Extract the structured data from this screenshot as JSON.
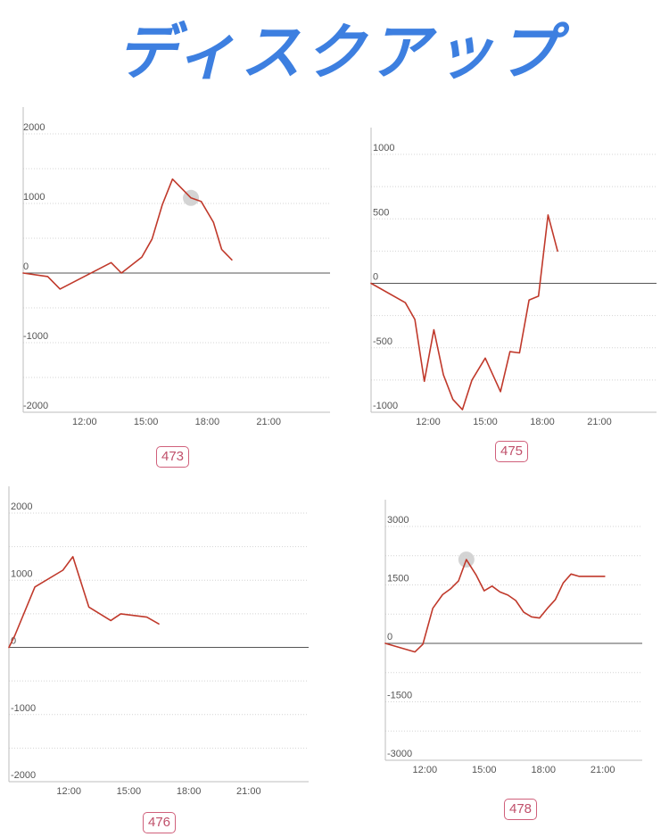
{
  "header": {
    "title": "ディスクアップ",
    "color": "#3d7fe0"
  },
  "theme": {
    "line": "#c0392b",
    "badge": "#d0607b"
  },
  "chart_data": [
    {
      "type": "line",
      "label": "473",
      "xticks": [
        "12:00",
        "15:00",
        "18:00",
        "21:00"
      ],
      "xlim": [
        9.0,
        24.0
      ],
      "yticks": [
        2000,
        1000,
        0,
        -1000,
        -2000
      ],
      "ylim": [
        -2000,
        2000
      ],
      "grid": true,
      "highlight_index": 9,
      "x": [
        9.0,
        10.2,
        10.8,
        13.3,
        13.8,
        14.8,
        15.3,
        15.8,
        16.3,
        17.2,
        17.7,
        18.3,
        18.7,
        19.2
      ],
      "y": [
        0,
        -50,
        -230,
        150,
        0,
        230,
        490,
        980,
        1350,
        1080,
        1030,
        730,
        340,
        190
      ]
    },
    {
      "type": "line",
      "label": "475",
      "xticks": [
        "12:00",
        "15:00",
        "18:00",
        "21:00"
      ],
      "xlim": [
        9.0,
        24.0
      ],
      "yticks": [
        1000,
        500,
        0,
        -500,
        -1000
      ],
      "ylim": [
        -1000,
        1000
      ],
      "grid": true,
      "highlight_index": null,
      "x": [
        9.0,
        10.8,
        11.3,
        11.8,
        12.3,
        12.8,
        13.3,
        13.8,
        14.3,
        15.0,
        15.8,
        16.3,
        16.8,
        17.3,
        17.8,
        18.3,
        18.8
      ],
      "y": [
        0,
        -150,
        -280,
        -760,
        -360,
        -710,
        -900,
        -980,
        -750,
        -580,
        -840,
        -530,
        -540,
        -130,
        -100,
        530,
        250
      ]
    },
    {
      "type": "line",
      "label": "476",
      "xticks": [
        "12:00",
        "15:00",
        "18:00",
        "21:00"
      ],
      "xlim": [
        9.0,
        24.0
      ],
      "yticks": [
        2000,
        1000,
        0,
        -1000,
        -2000
      ],
      "ylim": [
        -2000,
        2000
      ],
      "grid": true,
      "highlight_index": null,
      "x": [
        9.0,
        9.3,
        10.3,
        11.7,
        12.2,
        13.0,
        14.1,
        14.6,
        15.9,
        16.5
      ],
      "y": [
        0,
        180,
        900,
        1150,
        1350,
        600,
        400,
        500,
        450,
        350
      ]
    },
    {
      "type": "line",
      "label": "478",
      "xticks": [
        "12:00",
        "15:00",
        "18:00",
        "21:00"
      ],
      "xlim": [
        10.0,
        23.0
      ],
      "yticks": [
        3000,
        1500,
        0,
        -1500,
        -3000
      ],
      "ylim": [
        -3000,
        3000
      ],
      "grid": true,
      "highlight_index": 7,
      "x": [
        10.0,
        11.5,
        11.9,
        12.4,
        12.9,
        13.3,
        13.7,
        14.1,
        14.6,
        15.0,
        15.4,
        15.8,
        16.2,
        16.6,
        17.0,
        17.4,
        17.8,
        18.2,
        18.6,
        19.0,
        19.4,
        19.8,
        20.2,
        20.7,
        21.1
      ],
      "y": [
        0,
        -220,
        -20,
        900,
        1250,
        1400,
        1600,
        2150,
        1750,
        1350,
        1470,
        1320,
        1240,
        1100,
        800,
        680,
        650,
        900,
        1120,
        1550,
        1780,
        1720,
        1720,
        1720,
        1720
      ]
    }
  ]
}
